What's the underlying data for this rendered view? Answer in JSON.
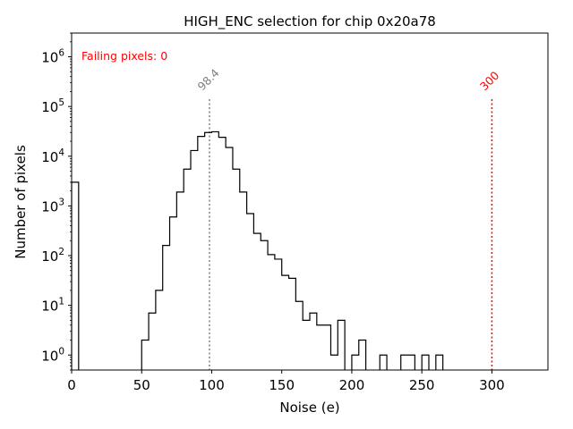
{
  "chart_data": {
    "type": "histogram",
    "title": "HIGH_ENC selection for chip 0x20a78",
    "xlabel": "Noise (e)",
    "ylabel": "Number of pixels",
    "xlim": [
      0,
      340
    ],
    "ylim": [
      0.5,
      3000000
    ],
    "yscale": "log",
    "x_ticks": [
      0,
      50,
      100,
      150,
      200,
      250,
      300
    ],
    "y_ticks": [
      {
        "value": 1,
        "exp": "0"
      },
      {
        "value": 10,
        "exp": "1"
      },
      {
        "value": 100,
        "exp": "2"
      },
      {
        "value": 1000,
        "exp": "3"
      },
      {
        "value": 10000,
        "exp": "4"
      },
      {
        "value": 100000,
        "exp": "5"
      },
      {
        "value": 1000000,
        "exp": "6"
      }
    ],
    "y_tick_base": "10",
    "bin_width": 5,
    "bins": [
      {
        "x0": 0,
        "count": 3000
      },
      {
        "x0": 50,
        "count": 2
      },
      {
        "x0": 55,
        "count": 7
      },
      {
        "x0": 60,
        "count": 20
      },
      {
        "x0": 65,
        "count": 160
      },
      {
        "x0": 70,
        "count": 600
      },
      {
        "x0": 75,
        "count": 1900
      },
      {
        "x0": 80,
        "count": 5500
      },
      {
        "x0": 85,
        "count": 13000
      },
      {
        "x0": 90,
        "count": 25000
      },
      {
        "x0": 95,
        "count": 30000
      },
      {
        "x0": 100,
        "count": 31000
      },
      {
        "x0": 105,
        "count": 24000
      },
      {
        "x0": 110,
        "count": 15000
      },
      {
        "x0": 115,
        "count": 5500
      },
      {
        "x0": 120,
        "count": 1900
      },
      {
        "x0": 125,
        "count": 700
      },
      {
        "x0": 130,
        "count": 280
      },
      {
        "x0": 135,
        "count": 200
      },
      {
        "x0": 140,
        "count": 105
      },
      {
        "x0": 145,
        "count": 85
      },
      {
        "x0": 150,
        "count": 40
      },
      {
        "x0": 155,
        "count": 35
      },
      {
        "x0": 160,
        "count": 12
      },
      {
        "x0": 165,
        "count": 5
      },
      {
        "x0": 170,
        "count": 7
      },
      {
        "x0": 175,
        "count": 4
      },
      {
        "x0": 180,
        "count": 4
      },
      {
        "x0": 185,
        "count": 1
      },
      {
        "x0": 190,
        "count": 5
      },
      {
        "x0": 200,
        "count": 1
      },
      {
        "x0": 205,
        "count": 2
      },
      {
        "x0": 220,
        "count": 1
      },
      {
        "x0": 235,
        "count": 1
      },
      {
        "x0": 240,
        "count": 1
      },
      {
        "x0": 250,
        "count": 1
      },
      {
        "x0": 260,
        "count": 1
      }
    ],
    "vlines": [
      {
        "x": 98.4,
        "label": "98.4",
        "color": "#808080"
      },
      {
        "x": 300,
        "label": "300",
        "color": "#ff0000"
      }
    ],
    "annotation": {
      "text": "Failing pixels: 0",
      "color": "#ff0000"
    },
    "line_color": "#000000"
  }
}
